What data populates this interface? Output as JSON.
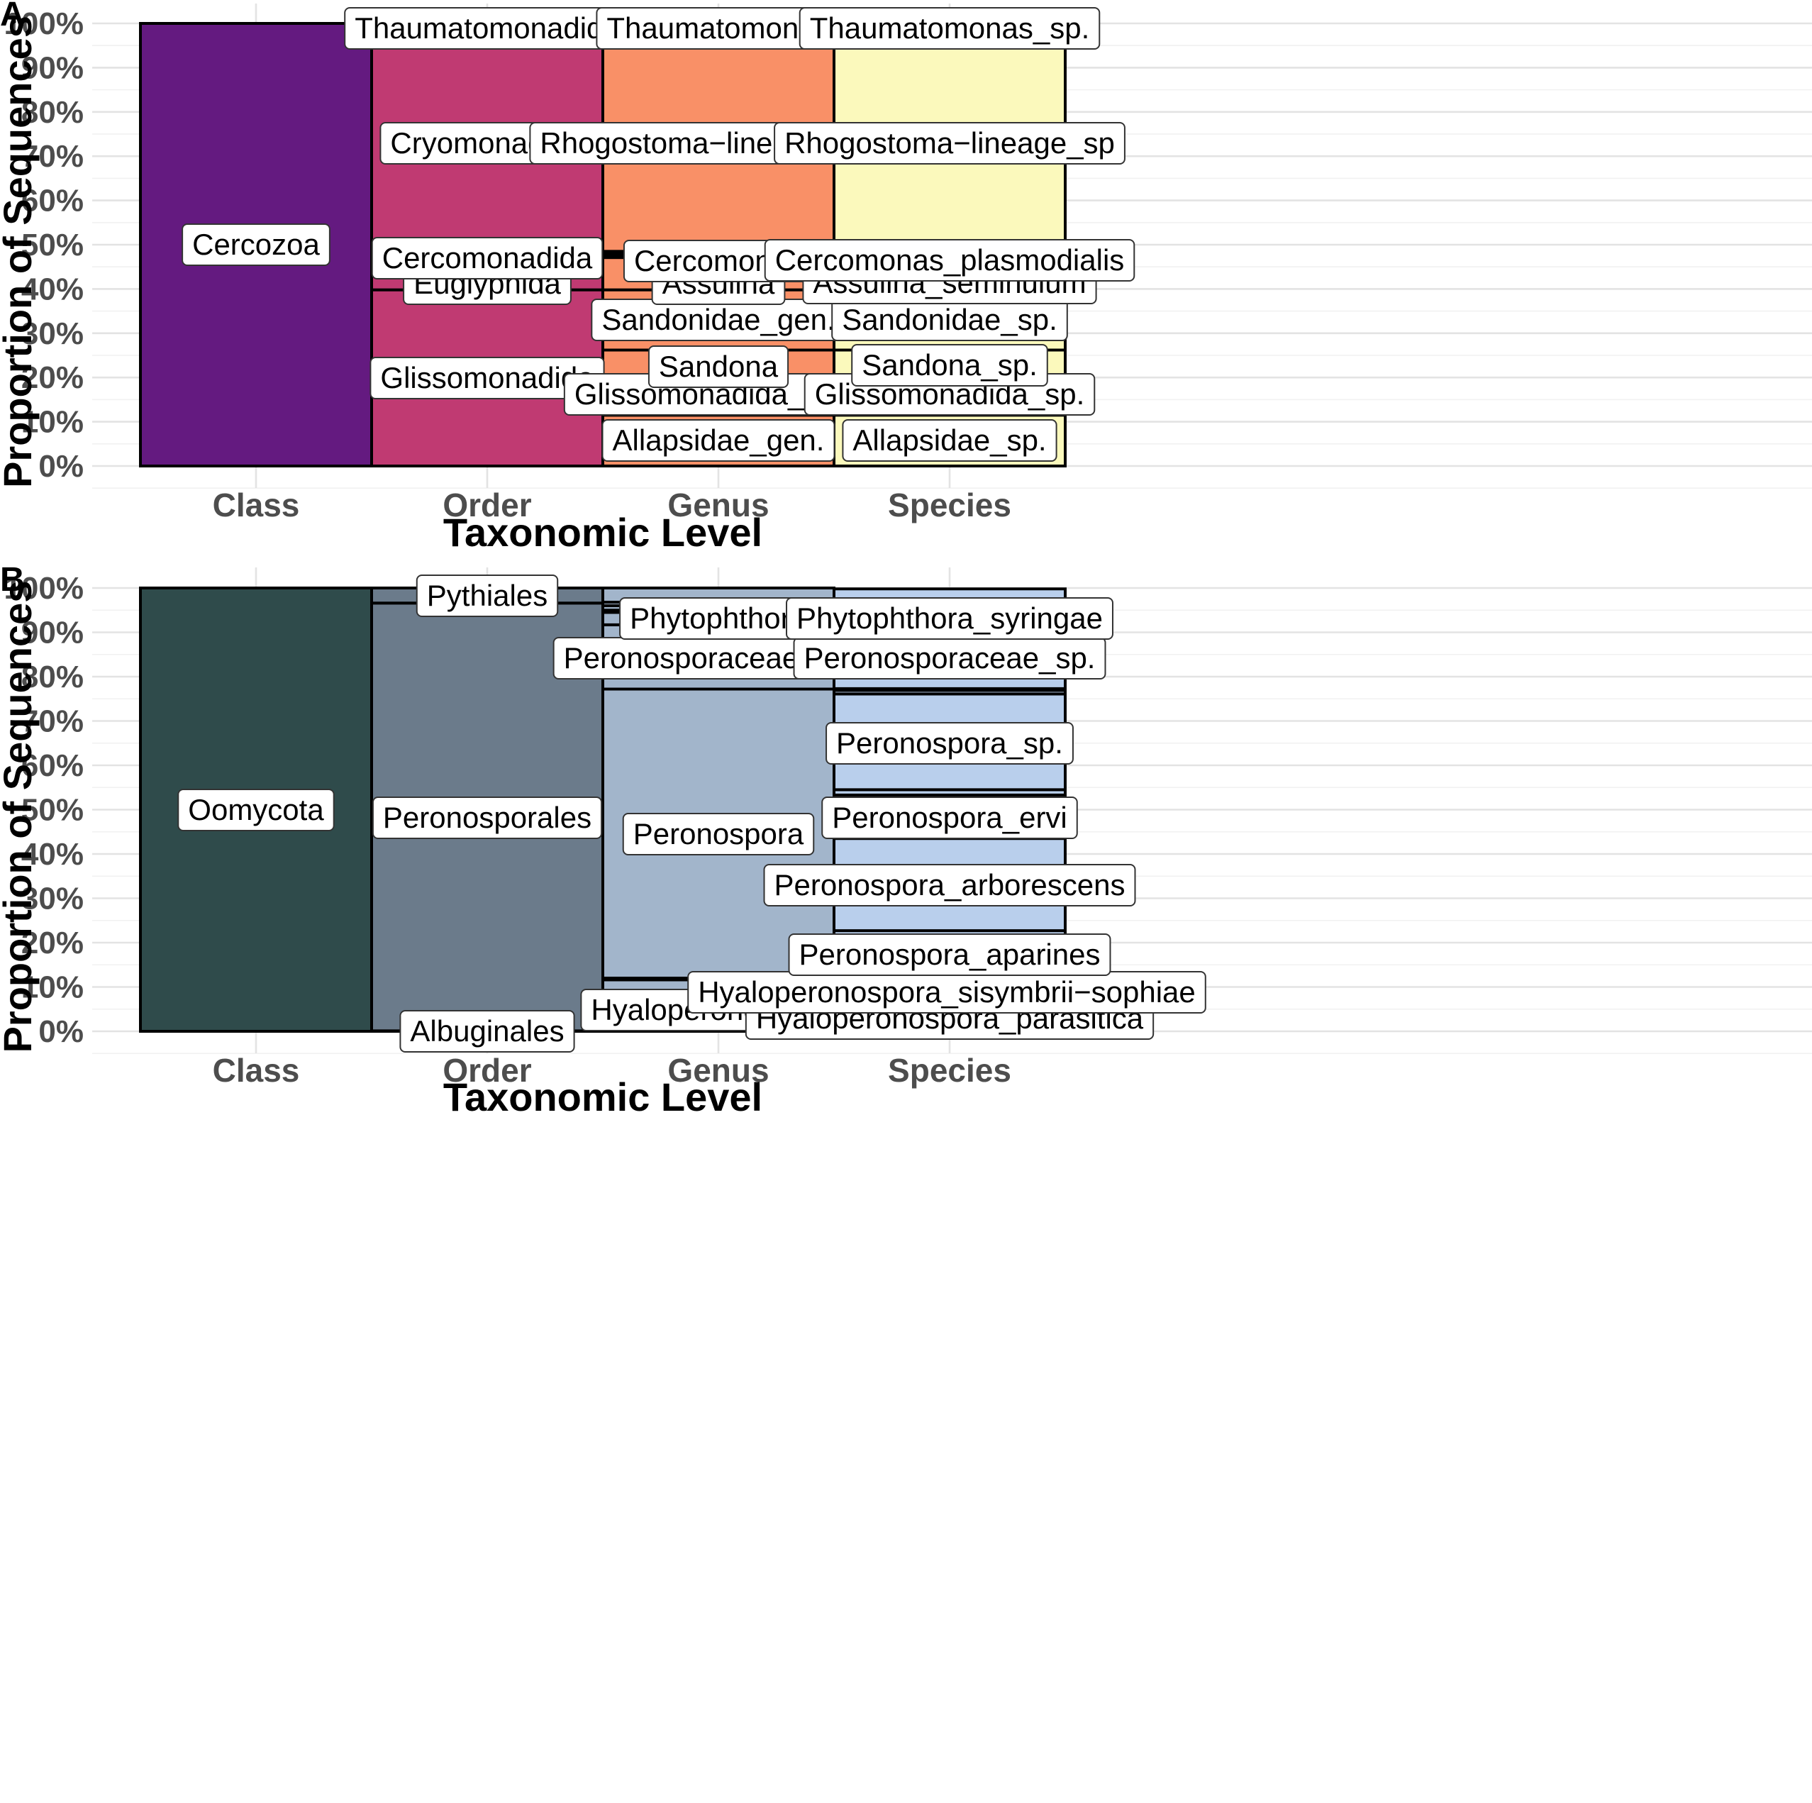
{
  "colors": {
    "A": {
      "class": "#641a80",
      "order": "#c03a72",
      "genus": "#f99067",
      "species": "#fbf9bc"
    },
    "B": {
      "class": "#2f4b4b",
      "order": "#6b7b8b",
      "genus": "#a2b5cb",
      "species": "#b9cfec"
    }
  },
  "chart_data": [
    {
      "panel": "A",
      "type": "bar",
      "stacked": true,
      "categories": [
        "Class",
        "Order",
        "Genus",
        "Species"
      ],
      "xlabel": "Taxonomic Level",
      "ylabel": "Proportion of Sequences",
      "ylim": [
        0,
        100
      ],
      "yticks": [
        "0%",
        "10%",
        "20%",
        "30%",
        "40%",
        "50%",
        "60%",
        "70%",
        "80%",
        "90%",
        "100%"
      ],
      "grid": true,
      "stacks": [
        {
          "category": "Class",
          "segments": [
            {
              "label": "Cercozoa",
              "value": 100
            }
          ]
        },
        {
          "category": "Order",
          "segments": [
            {
              "label": "Glissomonadida",
              "value": 39.8
            },
            {
              "label": "Euglyphida",
              "value": 4.3
            },
            {
              "label": "Cercomonadida",
              "value": 4.3
            },
            {
              "label": "Cryomonadida",
              "value": 48.3
            },
            {
              "label": "",
              "value": 0.6
            },
            {
              "label": "Thaumatomonadida",
              "value": 2.7
            }
          ]
        },
        {
          "category": "Genus",
          "segments": [
            {
              "label": "Allapsidae_gen.",
              "value": 11.5
            },
            {
              "label": "",
              "value": 1.5
            },
            {
              "label": "",
              "value": 1.0
            },
            {
              "label": "Glissomonadida_gen.",
              "value": 3.8
            },
            {
              "label": "",
              "value": 0.5
            },
            {
              "label": "Sandona",
              "value": 7.9
            },
            {
              "label": "Sandonidae_gen.",
              "value": 13.6
            },
            {
              "label": "Assulina",
              "value": 7.3
            },
            {
              "label": "Cercomonas",
              "value": 0.5
            },
            {
              "label": "",
              "value": 0.5
            },
            {
              "label": "",
              "value": 0.4
            },
            {
              "label": "Rhogostoma-lineage_gen.",
              "value": 48.7
            },
            {
              "label": "",
              "value": 0.5
            },
            {
              "label": "Thaumatomonas",
              "value": 2.3
            }
          ]
        },
        {
          "category": "Species",
          "segments": [
            {
              "label": "Allapsidae_sp.",
              "value": 11.5
            },
            {
              "label": "",
              "value": 1.5
            },
            {
              "label": "",
              "value": 1.0
            },
            {
              "label": "Glissomonadida_sp.",
              "value": 4.2
            },
            {
              "label": "",
              "value": 0.5
            },
            {
              "label": "Sandona_sp.",
              "value": 7.5
            },
            {
              "label": "Sandonidae_sp.",
              "value": 13.5
            },
            {
              "label": "Assulina_seminulum",
              "value": 0.1
            },
            {
              "label": "",
              "value": 7.2
            },
            {
              "label": "Cercomonas_plasmodialis",
              "value": 0.5
            },
            {
              "label": "",
              "value": 0.5
            },
            {
              "label": "",
              "value": 0.4
            },
            {
              "label": "Rhogostoma-lineage_sp",
              "value": 48.6
            },
            {
              "label": "",
              "value": 0.5
            },
            {
              "label": "Thaumatomonas_sp.",
              "value": 2.5
            }
          ]
        }
      ]
    },
    {
      "panel": "B",
      "type": "bar",
      "stacked": true,
      "categories": [
        "Class",
        "Order",
        "Genus",
        "Species"
      ],
      "xlabel": "Taxonomic Level",
      "ylabel": "Proportion of Sequences",
      "ylim": [
        0,
        100
      ],
      "yticks": [
        "0%",
        "10%",
        "20%",
        "30%",
        "40%",
        "50%",
        "60%",
        "70%",
        "80%",
        "90%",
        "100%"
      ],
      "grid": true,
      "stacks": [
        {
          "category": "Class",
          "segments": [
            {
              "label": "Oomycota",
              "value": 100
            }
          ]
        },
        {
          "category": "Order",
          "segments": [
            {
              "label": "Albuginales",
              "value": 0.1
            },
            {
              "label": "Peronosporales",
              "value": 96.5
            },
            {
              "label": "Pythiales",
              "value": 3.4
            }
          ]
        },
        {
          "category": "Genus",
          "segments": [
            {
              "label": "",
              "value": 0.1
            },
            {
              "label": "Hyaloperonospora",
              "value": 11.5
            },
            {
              "label": "",
              "value": 0.4
            },
            {
              "label": "Peronospora",
              "value": 65.2
            },
            {
              "label": "Peronosporaceae_gen.",
              "value": 14.5
            },
            {
              "label": "",
              "value": 2.8
            },
            {
              "label": "Phytophthora",
              "value": 0.5
            },
            {
              "label": "",
              "value": 1.0
            },
            {
              "label": "",
              "value": 0.8
            },
            {
              "label": "",
              "value": 3.2
            }
          ]
        },
        {
          "category": "Species",
          "segments": [
            {
              "label": "",
              "value": 0.1
            },
            {
              "label": "Hyaloperonospora_parasitica",
              "value": 11.4
            },
            {
              "label": "Hyaloperonospora_sisymbrii-sophiae",
              "value": 0.3
            },
            {
              "label": "Peronospora_aparines",
              "value": 10.9
            },
            {
              "label": "Peronospora_arborescens",
              "value": 20.8
            },
            {
              "label": "Peronospora_ervi",
              "value": 9.8
            },
            {
              "label": "",
              "value": 1.2
            },
            {
              "label": "Peronospora_sp.",
              "value": 21.6
            },
            {
              "label": "",
              "value": 0.8
            },
            {
              "label": "",
              "value": 0.4
            },
            {
              "label": "Peronosporaceae_sp.",
              "value": 14.7
            },
            {
              "label": "",
              "value": 0.5
            },
            {
              "label": "Phytophthora_syringae",
              "value": 2.8
            },
            {
              "label": "",
              "value": 0.5
            },
            {
              "label": "",
              "value": 1.0
            },
            {
              "label": "",
              "value": 0.8
            },
            {
              "label": "",
              "value": 2.2
            }
          ]
        }
      ]
    }
  ]
}
